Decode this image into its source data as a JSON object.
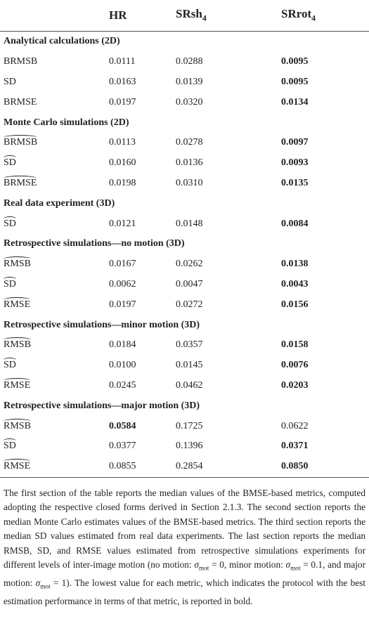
{
  "table": {
    "header": [
      null,
      {
        "text": "HR"
      },
      {
        "text": "SRsh",
        "sub": "4"
      },
      {
        "text": "SRrot",
        "sub": "4"
      }
    ],
    "sections": [
      {
        "title": "Analytical calculations (2D)",
        "rows": [
          {
            "label": "BRMSB",
            "hat": false,
            "cells": [
              "0.0111",
              "0.0288",
              "0.0095"
            ],
            "bold": [
              2
            ]
          },
          {
            "label": "SD",
            "hat": false,
            "cells": [
              "0.0163",
              "0.0139",
              "0.0095"
            ],
            "bold": [
              2
            ]
          },
          {
            "label": "BRMSE",
            "hat": false,
            "cells": [
              "0.0197",
              "0.0320",
              "0.0134"
            ],
            "bold": [
              2
            ]
          }
        ]
      },
      {
        "title": "Monte Carlo simulations (2D)",
        "rows": [
          {
            "label": "BRMSB",
            "hat": true,
            "cells": [
              "0.0113",
              "0.0278",
              "0.0097"
            ],
            "bold": [
              2
            ]
          },
          {
            "label": "SD",
            "hat": true,
            "cells": [
              "0.0160",
              "0.0136",
              "0.0093"
            ],
            "bold": [
              2
            ]
          },
          {
            "label": "BRMSE",
            "hat": true,
            "cells": [
              "0.0198",
              "0.0310",
              "0.0135"
            ],
            "bold": [
              2
            ]
          }
        ]
      },
      {
        "title": "Real data experiment (3D)",
        "rows": [
          {
            "label": "SD",
            "hat": true,
            "cells": [
              "0.0121",
              "0.0148",
              "0.0084"
            ],
            "bold": [
              2
            ]
          }
        ]
      },
      {
        "title": "Retrospective simulations—no motion (3D)",
        "rows": [
          {
            "label": "RMSB",
            "hat": true,
            "cells": [
              "0.0167",
              "0.0262",
              "0.0138"
            ],
            "bold": [
              2
            ]
          },
          {
            "label": "SD",
            "hat": true,
            "cells": [
              "0.0062",
              "0.0047",
              "0.0043"
            ],
            "bold": [
              2
            ]
          },
          {
            "label": "RMSE",
            "hat": true,
            "cells": [
              "0.0197",
              "0.0272",
              "0.0156"
            ],
            "bold": [
              2
            ]
          }
        ]
      },
      {
        "title": "Retrospective simulations—minor motion (3D)",
        "rows": [
          {
            "label": "RMSB",
            "hat": true,
            "cells": [
              "0.0184",
              "0.0357",
              "0.0158"
            ],
            "bold": [
              2
            ]
          },
          {
            "label": "SD",
            "hat": true,
            "cells": [
              "0.0100",
              "0.0145",
              "0.0076"
            ],
            "bold": [
              2
            ]
          },
          {
            "label": "RMSE",
            "hat": true,
            "cells": [
              "0.0245",
              "0.0462",
              "0.0203"
            ],
            "bold": [
              2
            ]
          }
        ]
      },
      {
        "title": "Retrospective simulations—major motion (3D)",
        "rows": [
          {
            "label": "RMSB",
            "hat": true,
            "cells": [
              "0.0584",
              "0.1725",
              "0.0622"
            ],
            "bold": [
              0
            ]
          },
          {
            "label": "SD",
            "hat": true,
            "cells": [
              "0.0377",
              "0.1396",
              "0.0371"
            ],
            "bold": [
              2
            ]
          },
          {
            "label": "RMSE",
            "hat": true,
            "cells": [
              "0.0855",
              "0.2854",
              "0.0850"
            ],
            "bold": [
              2
            ]
          }
        ]
      }
    ],
    "note": [
      "The first section of the table reports the median values of the BMSE-based metrics, computed adopting the respective closed forms derived in Section 2.1.3. The second section reports the median Monte Carlo estimates values of the BMSE-based metrics. The third section reports the median SD values estimated from real data experiments. The last section reports the median RMSB, SD, and RMSE values estimated from retrospective simulations experiments for different levels of inter-image motion (no motion: ",
      {
        "text": "σ",
        "sub": "mot"
      },
      " = 0, minor motion: ",
      {
        "text": "σ",
        "sub": "mot"
      },
      " = 0.1, and major motion: ",
      {
        "text": "σ",
        "sub": "mot"
      },
      " = 1). The lowest value for each metric, which indicates the protocol with the best estimation performance in terms of that metric, is reported in bold."
    ]
  }
}
